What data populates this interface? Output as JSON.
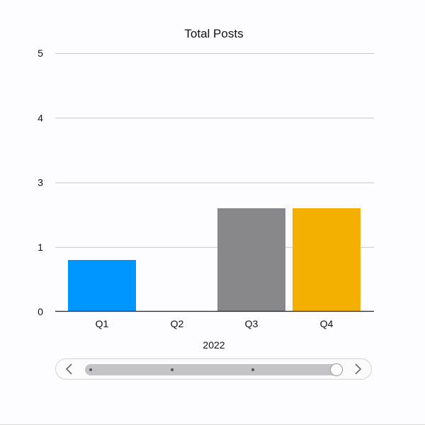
{
  "chart_data": {
    "type": "bar",
    "title": "Total Posts",
    "xlabel": "2022",
    "ylabel": "",
    "categories": [
      "Q1",
      "Q2",
      "Q3",
      "Q4"
    ],
    "values": [
      0.8,
      0,
      1.6,
      1.6
    ],
    "colors": [
      "#0096ff",
      "#888888",
      "#888789",
      "#f3b000"
    ],
    "y_ticks": [
      {
        "label": "0",
        "pos": 0
      },
      {
        "label": "1",
        "pos": 1
      },
      {
        "label": "3",
        "pos": 2
      },
      {
        "label": "4",
        "pos": 3
      },
      {
        "label": "5",
        "pos": 4
      }
    ],
    "ylim": [
      0,
      4
    ],
    "grid": true,
    "legend": "none"
  },
  "slider": {
    "left_icon": "chevron-left-icon",
    "right_icon": "chevron-right-icon",
    "position": 1.0
  }
}
